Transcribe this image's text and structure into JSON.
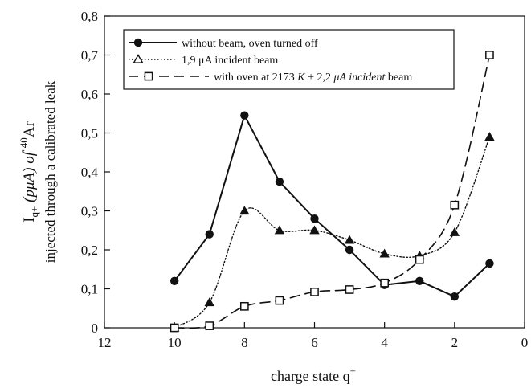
{
  "chart_data": {
    "type": "line",
    "title": "",
    "xlabel": {
      "main": "charge state q",
      "sup": "+"
    },
    "ylabel": {
      "line1": {
        "main": "I",
        "sub": "q+",
        "mid": " (pμA) of ",
        "sup": "40",
        "end": "Ar"
      },
      "line2": "injected through a calibrated leak"
    },
    "xlim": [
      12,
      0
    ],
    "ylim": [
      0,
      0.8
    ],
    "x_reversed": true,
    "x_ticks": [
      12,
      10,
      8,
      6,
      4,
      2,
      0
    ],
    "x_tick_labels": [
      "12",
      "10",
      "8",
      "6",
      "4",
      "2",
      "0"
    ],
    "y_ticks": [
      0,
      0.1,
      0.2,
      0.3,
      0.4,
      0.5,
      0.6,
      0.7,
      0.8
    ],
    "y_tick_labels": [
      "0",
      "0,1",
      "0,2",
      "0,3",
      "0,4",
      "0,5",
      "0,6",
      "0,7",
      "0,8"
    ],
    "grid": false,
    "legend_position": "top-right",
    "series": [
      {
        "name": "without beam, oven turned off",
        "marker": "filled-circle",
        "line_style": "solid",
        "color": "#111111",
        "x": [
          10,
          9,
          8,
          7,
          6,
          5,
          4,
          3,
          2,
          1
        ],
        "y": [
          0.12,
          0.24,
          0.545,
          0.375,
          0.28,
          0.2,
          0.11,
          0.12,
          0.08,
          0.165
        ]
      },
      {
        "name_parts": [
          "1,9 ",
          "μA",
          " incident beam"
        ],
        "marker": "filled-triangle",
        "line_style": "dotted",
        "color": "#111111",
        "x": [
          10,
          9,
          8,
          7,
          6,
          5,
          4,
          3,
          2,
          1
        ],
        "y": [
          0.0,
          0.065,
          0.3,
          0.25,
          0.25,
          0.225,
          0.19,
          0.185,
          0.245,
          0.49
        ]
      },
      {
        "name_parts": [
          "with oven at 2173 ",
          "K",
          " + 2,2 ",
          "μA",
          " incident",
          " beam"
        ],
        "marker": "open-square",
        "line_style": "dashed",
        "color": "#111111",
        "x": [
          10,
          9,
          8,
          7,
          6,
          5,
          4,
          3,
          2,
          1
        ],
        "y": [
          0.0,
          0.005,
          0.055,
          0.07,
          0.092,
          0.098,
          0.115,
          0.175,
          0.315,
          0.7
        ]
      }
    ]
  }
}
